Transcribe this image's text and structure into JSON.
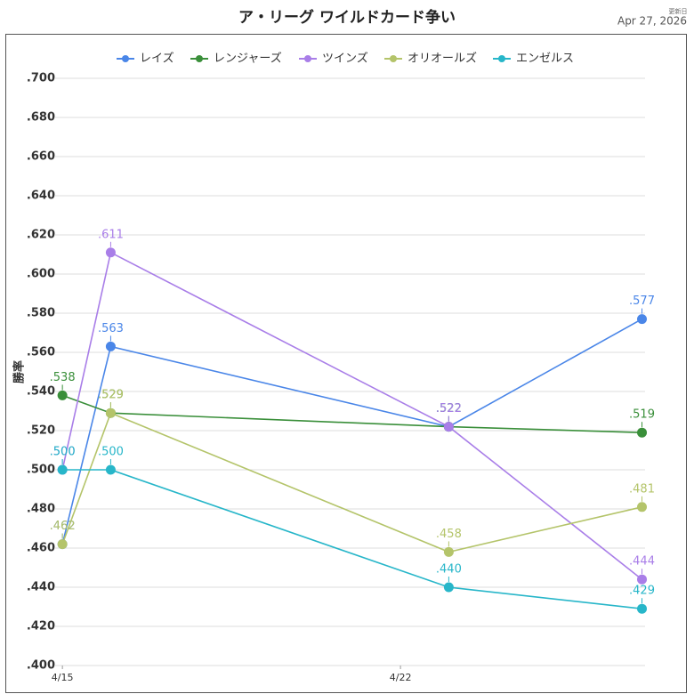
{
  "chart_data": {
    "type": "line",
    "title": "ア・リーグ ワイルドカード争い",
    "updated_label": "更新日",
    "updated_date": "Apr 27, 2026",
    "y_label": "勝率",
    "x": [
      15,
      16,
      23,
      27
    ],
    "xlim": [
      14.85,
      27.93
    ],
    "xticks": [
      {
        "value": 15,
        "label": "4/15"
      },
      {
        "value": 22,
        "label": "4/22"
      }
    ],
    "ylim": [
      0.4,
      0.7
    ],
    "yticks": [
      {
        "value": 0.4,
        "label": ".400"
      },
      {
        "value": 0.42,
        "label": ".420"
      },
      {
        "value": 0.44,
        "label": ".440"
      },
      {
        "value": 0.46,
        "label": ".460"
      },
      {
        "value": 0.48,
        "label": ".480"
      },
      {
        "value": 0.5,
        "label": ".500"
      },
      {
        "value": 0.52,
        "label": ".520"
      },
      {
        "value": 0.54,
        "label": ".540"
      },
      {
        "value": 0.56,
        "label": ".560"
      },
      {
        "value": 0.58,
        "label": ".580"
      },
      {
        "value": 0.6,
        "label": ".600"
      },
      {
        "value": 0.62,
        "label": ".620"
      },
      {
        "value": 0.64,
        "label": ".640"
      },
      {
        "value": 0.66,
        "label": ".660"
      },
      {
        "value": 0.68,
        "label": ".680"
      },
      {
        "value": 0.7,
        "label": ".700"
      }
    ],
    "grid": true,
    "legend": "top",
    "series": [
      {
        "name": "レイズ",
        "color": "#4a86e8",
        "values": [
          0.462,
          0.563,
          0.522,
          0.577
        ],
        "value_labels": [
          ".462",
          ".563",
          ".522",
          ".577"
        ]
      },
      {
        "name": "レンジャーズ",
        "color": "#3a8f3a",
        "values": [
          0.538,
          0.529,
          0.522,
          0.519
        ],
        "value_labels": [
          ".538",
          ".529",
          ".522",
          ".519"
        ]
      },
      {
        "name": "ツインズ",
        "color": "#a97ee8",
        "values": [
          0.5,
          0.611,
          0.522,
          0.444
        ],
        "value_labels": [
          ".500",
          ".611",
          ".522",
          ".444"
        ]
      },
      {
        "name": "オリオールズ",
        "color": "#b4c46a",
        "values": [
          0.462,
          0.529,
          0.458,
          0.481
        ],
        "value_labels": [
          ".462",
          ".529",
          ".458",
          ".481"
        ]
      },
      {
        "name": "エンゼルス",
        "color": "#27b6c9",
        "values": [
          0.5,
          0.5,
          0.44,
          0.429
        ],
        "value_labels": [
          ".500",
          ".500",
          ".440",
          ".429"
        ]
      }
    ]
  }
}
